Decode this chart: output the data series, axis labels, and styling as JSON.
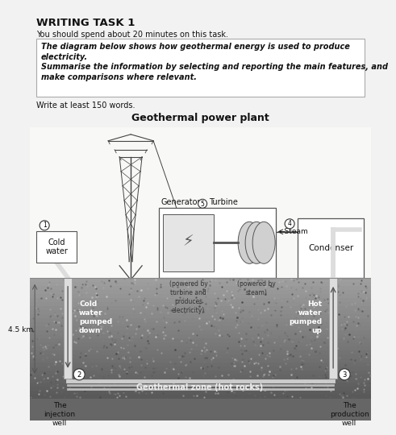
{
  "title": "WRITING TASK 1",
  "subtitle": "You should spend about 20 minutes on this task.",
  "box_italic1": "The diagram below shows how geothermal energy is used to produce\nelectricity.",
  "box_italic2": "Summarise the information by selecting and reporting the main features, and\nmake comparisons where relevant.",
  "write_text": "Write at least 150 words.",
  "diagram_title": "Geothermal power plant",
  "geothermal_label": "Geothermal zone (hot rocks)",
  "cold_pumped": "Cold\nwater\npumped\ndown",
  "hot_pumped": "Hot\nwater\npumped\nup",
  "steam_label": "←Steam",
  "gen_sub": "(powered by\nturbine and\nproduces\nelectricity)",
  "turb_sub": "(powered by\nsteam)",
  "depth": "4.5 km",
  "label1": "Cold\nwater",
  "label2": "The\ninjection\nwell",
  "label3": "The\nproduction\nwell",
  "label4": "Condenser",
  "generator_label": "Generator",
  "turbine_label": "Turbine",
  "page_bg": "#f2f2f2",
  "white": "#ffffff",
  "dark": "#111111",
  "mid": "#555555",
  "light_gray": "#cccccc"
}
